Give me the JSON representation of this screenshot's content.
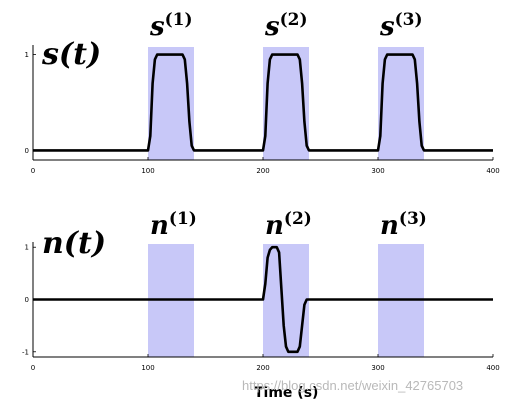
{
  "chart_data": [
    {
      "type": "line",
      "title": "s(t)",
      "xlim": [
        0,
        400
      ],
      "ylim": [
        -0.1,
        1.1
      ],
      "x_ticks": [
        "0",
        "100",
        "200",
        "300",
        "400"
      ],
      "y_ticks": [
        "0",
        "1"
      ],
      "intervals": [
        {
          "label_base": "s",
          "label_sup": "(1)",
          "start": 100,
          "end": 140,
          "color": "#c8c8f8"
        },
        {
          "label_base": "s",
          "label_sup": "(2)",
          "start": 200,
          "end": 240,
          "color": "#c8c8f8"
        },
        {
          "label_base": "s",
          "label_sup": "(3)",
          "start": 300,
          "end": 340,
          "color": "#c8c8f8"
        }
      ],
      "series": [
        {
          "x": [
            0,
            100,
            102,
            104,
            106,
            108,
            130,
            132,
            134,
            136,
            138,
            140,
            200,
            202,
            204,
            206,
            208,
            230,
            232,
            234,
            236,
            238,
            240,
            300,
            302,
            304,
            306,
            308,
            330,
            332,
            334,
            336,
            338,
            340,
            400
          ],
          "y": [
            0,
            0,
            0.15,
            0.7,
            0.95,
            1,
            1,
            0.95,
            0.7,
            0.3,
            0.05,
            0,
            0,
            0.15,
            0.7,
            0.95,
            1,
            1,
            0.95,
            0.7,
            0.3,
            0.05,
            0,
            0,
            0.15,
            0.7,
            0.95,
            1,
            1,
            0.95,
            0.7,
            0.3,
            0.05,
            0,
            0
          ]
        }
      ]
    },
    {
      "type": "line",
      "title": "n(t)",
      "xlim": [
        0,
        400
      ],
      "ylim": [
        -1.1,
        1.1
      ],
      "x_ticks": [
        "0",
        "100",
        "200",
        "300",
        "400"
      ],
      "y_ticks": [
        "-1",
        "0",
        "1"
      ],
      "intervals": [
        {
          "label_base": "n",
          "label_sup": "(1)",
          "start": 100,
          "end": 140,
          "color": "#c8c8f8"
        },
        {
          "label_base": "n",
          "label_sup": "(2)",
          "start": 200,
          "end": 240,
          "color": "#c8c8f8"
        },
        {
          "label_base": "n",
          "label_sup": "(3)",
          "start": 300,
          "end": 340,
          "color": "#c8c8f8"
        }
      ],
      "series": [
        {
          "x": [
            0,
            200,
            202,
            204,
            206,
            208,
            212,
            214,
            216,
            218,
            220,
            222,
            224,
            226,
            230,
            232,
            234,
            236,
            238,
            240,
            400
          ],
          "y": [
            0,
            0,
            0.3,
            0.8,
            0.95,
            1,
            1,
            0.9,
            0.2,
            -0.5,
            -0.9,
            -1,
            -1,
            -1,
            -1,
            -0.9,
            -0.5,
            -0.1,
            0,
            0,
            0
          ]
        }
      ]
    }
  ],
  "xlabel": "Time (s)",
  "watermark": "https://blog.csdn.net/weixin_42765703"
}
